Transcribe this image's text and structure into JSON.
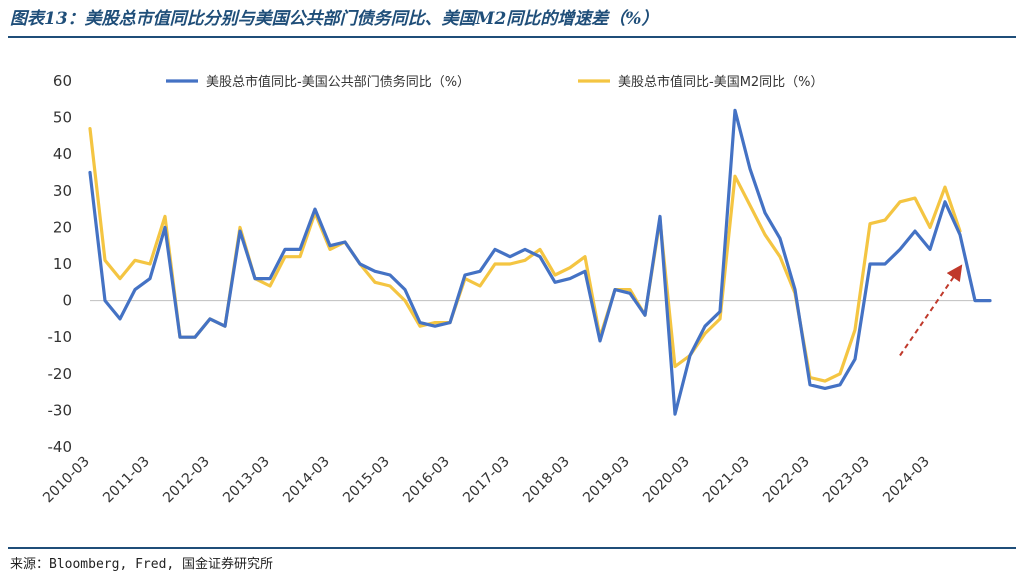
{
  "title": "图表13：美股总市值同比分别与美国公共部门债务同比、美国M2同比的增速差（%）",
  "source": "来源：Bloomberg, Fred, 国金证券研究所",
  "chart_data": {
    "type": "line",
    "title": "",
    "xlabel": "",
    "ylabel": "",
    "ylim": [
      -40,
      60
    ],
    "yticks": [
      -40,
      -30,
      -20,
      -10,
      0,
      10,
      20,
      30,
      40,
      50,
      60
    ],
    "grid": false,
    "legend_position": "top",
    "x": [
      "2010-03",
      "2010-06",
      "2010-09",
      "2010-12",
      "2011-03",
      "2011-06",
      "2011-09",
      "2011-12",
      "2012-03",
      "2012-06",
      "2012-09",
      "2012-12",
      "2013-03",
      "2013-06",
      "2013-09",
      "2013-12",
      "2014-03",
      "2014-06",
      "2014-09",
      "2014-12",
      "2015-03",
      "2015-06",
      "2015-09",
      "2015-12",
      "2016-03",
      "2016-06",
      "2016-09",
      "2016-12",
      "2017-03",
      "2017-06",
      "2017-09",
      "2017-12",
      "2018-03",
      "2018-06",
      "2018-09",
      "2018-12",
      "2019-03",
      "2019-06",
      "2019-09",
      "2019-12",
      "2020-03",
      "2020-06",
      "2020-09",
      "2020-12",
      "2021-03",
      "2021-06",
      "2021-09",
      "2021-12",
      "2022-03",
      "2022-06",
      "2022-09",
      "2022-12",
      "2023-03",
      "2023-06",
      "2023-09",
      "2023-12",
      "2024-03",
      "2024-06",
      "2024-09",
      "2024-12",
      "2025-03"
    ],
    "xtick_labels": [
      "2010-03",
      "2011-03",
      "2012-03",
      "2013-03",
      "2014-03",
      "2015-03",
      "2016-03",
      "2017-03",
      "2018-03",
      "2019-03",
      "2020-03",
      "2021-03",
      "2022-03",
      "2023-03",
      "2024-03"
    ],
    "series": [
      {
        "name": "美股总市值同比-美国公共部门债务同比（%）",
        "color": "#4472c4",
        "values": [
          35,
          0,
          -5,
          3,
          6,
          20,
          -10,
          -10,
          -5,
          -7,
          19,
          6,
          6,
          14,
          14,
          25,
          15,
          16,
          10,
          8,
          7,
          3,
          -6,
          -7,
          -6,
          7,
          8,
          14,
          12,
          14,
          12,
          5,
          6,
          8,
          -11,
          3,
          2,
          -4,
          23,
          -31,
          -15,
          -7,
          -3,
          52,
          36,
          24,
          17,
          3,
          -23,
          -24,
          -23,
          -16,
          10,
          10,
          14,
          19,
          14,
          27,
          18,
          0,
          0
        ]
      },
      {
        "name": "美股总市值同比-美国M2同比（%）",
        "color": "#f4c542",
        "values": [
          47,
          11,
          6,
          11,
          10,
          23,
          -10,
          -10,
          -5,
          -7,
          20,
          6,
          4,
          12,
          12,
          24,
          14,
          16,
          10,
          5,
          4,
          0,
          -7,
          -6,
          -6,
          6,
          4,
          10,
          10,
          11,
          14,
          7,
          9,
          12,
          -10,
          3,
          3,
          -4,
          22,
          -18,
          -15,
          -9,
          -5,
          34,
          26,
          18,
          12,
          2,
          -21,
          -22,
          -20,
          -8,
          21,
          22,
          27,
          28,
          20,
          31,
          19,
          0,
          0
        ],
        "n_valid": 59
      }
    ],
    "annotations": [
      {
        "type": "arrow",
        "style": "dashed",
        "color": "#c0392b",
        "from": {
          "x": "2023-09",
          "y": -15
        },
        "to": {
          "x": "2024-09",
          "y": 9
        }
      }
    ]
  }
}
